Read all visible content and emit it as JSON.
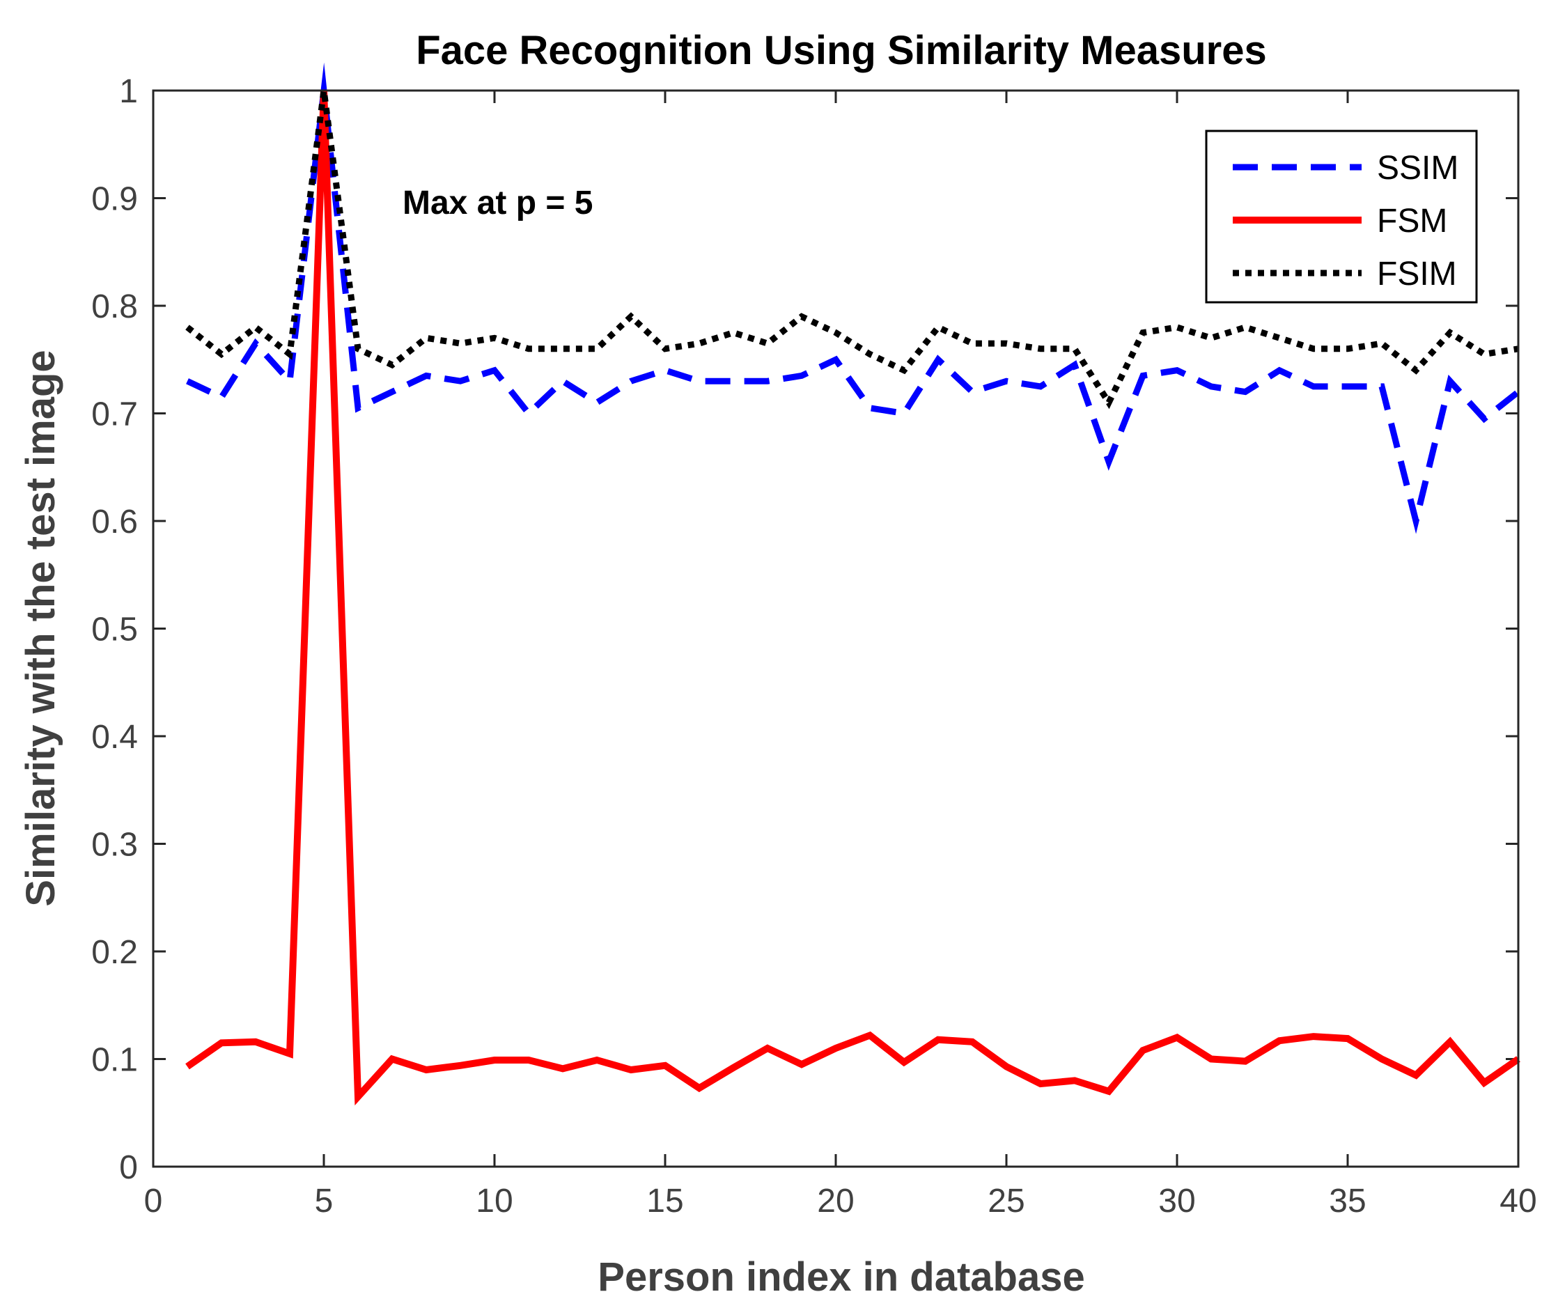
{
  "chart_data": {
    "type": "line",
    "title": "Face Recognition Using Similarity Measures",
    "xlabel": "Person index in database",
    "ylabel": "Similarity with the test image",
    "xlim": [
      0,
      40
    ],
    "ylim": [
      0,
      1
    ],
    "xticks": [
      0,
      5,
      10,
      15,
      20,
      25,
      30,
      35,
      40
    ],
    "yticks": [
      0,
      0.1,
      0.2,
      0.3,
      0.4,
      0.5,
      0.6,
      0.7,
      0.8,
      0.9,
      1
    ],
    "grid": false,
    "legend_position": "top-right",
    "annotation": "Max at p = 5",
    "x": [
      1,
      2,
      3,
      4,
      5,
      6,
      7,
      8,
      9,
      10,
      11,
      12,
      13,
      14,
      15,
      16,
      17,
      18,
      19,
      20,
      21,
      22,
      23,
      24,
      25,
      26,
      27,
      28,
      29,
      30,
      31,
      32,
      33,
      34,
      35,
      36,
      37,
      38,
      39,
      40
    ],
    "series": [
      {
        "name": "SSIM",
        "color": "#0000ff",
        "style": "dashed",
        "values": [
          0.73,
          0.715,
          0.765,
          0.73,
          1.0,
          0.705,
          0.72,
          0.735,
          0.73,
          0.74,
          0.7,
          0.73,
          0.71,
          0.73,
          0.74,
          0.73,
          0.73,
          0.73,
          0.735,
          0.75,
          0.705,
          0.7,
          0.75,
          0.72,
          0.73,
          0.725,
          0.745,
          0.655,
          0.735,
          0.74,
          0.725,
          0.72,
          0.74,
          0.725,
          0.725,
          0.725,
          0.6,
          0.73,
          0.695,
          0.72
        ]
      },
      {
        "name": "FSM",
        "color": "#ff0000",
        "style": "solid",
        "values": [
          0.093,
          0.115,
          0.116,
          0.105,
          1.0,
          0.065,
          0.1,
          0.09,
          0.094,
          0.099,
          0.099,
          0.091,
          0.099,
          0.09,
          0.094,
          0.073,
          0.092,
          0.11,
          0.095,
          0.11,
          0.122,
          0.097,
          0.118,
          0.116,
          0.093,
          0.077,
          0.08,
          0.07,
          0.108,
          0.12,
          0.1,
          0.098,
          0.117,
          0.121,
          0.119,
          0.1,
          0.085,
          0.116,
          0.078,
          0.1
        ]
      },
      {
        "name": "FSIM",
        "color": "#000000",
        "style": "dotted",
        "values": [
          0.78,
          0.755,
          0.78,
          0.755,
          1.0,
          0.76,
          0.745,
          0.77,
          0.765,
          0.77,
          0.76,
          0.76,
          0.76,
          0.79,
          0.76,
          0.765,
          0.775,
          0.765,
          0.79,
          0.775,
          0.755,
          0.74,
          0.78,
          0.765,
          0.765,
          0.76,
          0.76,
          0.71,
          0.775,
          0.78,
          0.77,
          0.78,
          0.77,
          0.76,
          0.76,
          0.765,
          0.74,
          0.775,
          0.755,
          0.76
        ]
      }
    ]
  }
}
